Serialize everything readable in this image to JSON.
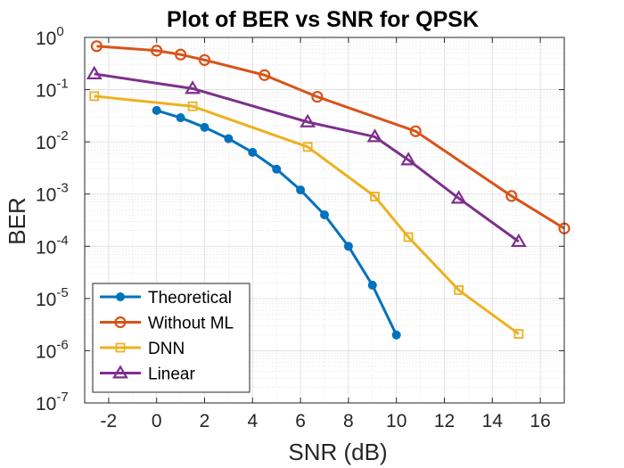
{
  "chart_data": {
    "type": "line",
    "title": "Plot of BER vs SNR for QPSK",
    "xlabel": "SNR (dB)",
    "ylabel": "BER",
    "xlim": [
      -3,
      17
    ],
    "ylim": [
      1e-07,
      1
    ],
    "yscale": "log",
    "grid": true,
    "minor_grid": true,
    "legend_position": "bottom-left",
    "x_ticks": [
      -2,
      0,
      2,
      4,
      6,
      8,
      10,
      12,
      14,
      16
    ],
    "x_tick_labels": [
      "-2",
      "0",
      "2",
      "4",
      "6",
      "8",
      "10",
      "12",
      "14",
      "16"
    ],
    "y_tick_exponents": [
      "0",
      "-1",
      "-2",
      "-3",
      "-4",
      "-5",
      "-6",
      "-7"
    ],
    "y_tick_base": "10",
    "series": [
      {
        "name": "Theoretical",
        "color": "#0072BD",
        "marker": "dot",
        "x": [
          0,
          1,
          2,
          3,
          4,
          5,
          6,
          7,
          8,
          9,
          10
        ],
        "y": [
          0.04,
          0.029,
          0.019,
          0.0115,
          0.0063,
          0.003,
          0.0012,
          0.0004,
          0.0001,
          1.8e-05,
          2e-06
        ]
      },
      {
        "name": "Without ML",
        "color": "#D95319",
        "marker": "circle",
        "x": [
          -2.5,
          0,
          1,
          2,
          4.5,
          6.7,
          10.8,
          14.8,
          17
        ],
        "y": [
          0.68,
          0.56,
          0.47,
          0.37,
          0.19,
          0.073,
          0.016,
          0.00092,
          0.00022
        ]
      },
      {
        "name": "DNN",
        "color": "#EDB120",
        "marker": "square",
        "x": [
          -2.6,
          1.5,
          6.3,
          9.1,
          10.5,
          12.6,
          15.1
        ],
        "y": [
          0.075,
          0.048,
          0.008,
          0.0009,
          0.00015,
          1.45e-05,
          2.1e-06
        ]
      },
      {
        "name": "Linear",
        "color": "#7E2F8E",
        "marker": "triangle",
        "x": [
          -2.6,
          1.5,
          6.3,
          9.1,
          10.5,
          12.6,
          15.1
        ],
        "y": [
          0.2,
          0.105,
          0.024,
          0.0125,
          0.0045,
          0.00083,
          0.000123
        ]
      }
    ]
  }
}
